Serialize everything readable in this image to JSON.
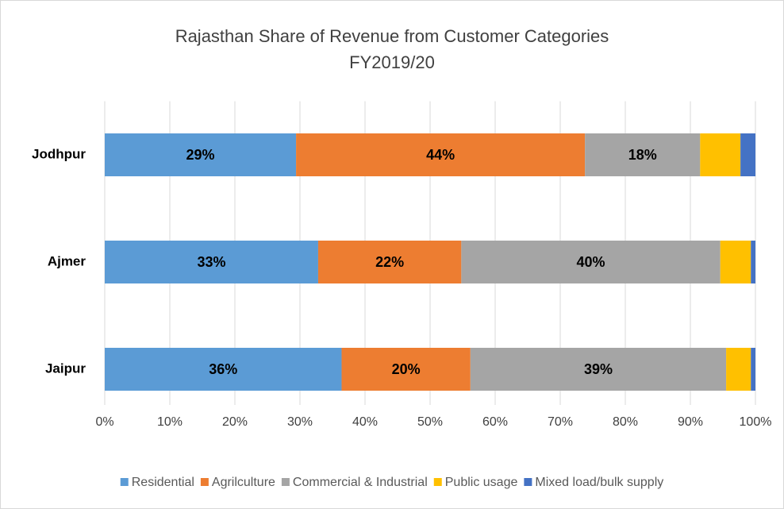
{
  "chart_data": {
    "type": "stacked-bar-horizontal",
    "title": [
      "Rajasthan Share of Revenue from Customer Categories",
      "FY2019/20"
    ],
    "categories": [
      "Jodhpur",
      "Ajmer",
      "Jaipur"
    ],
    "series": [
      {
        "name": "Residential",
        "color": "#5b9bd5",
        "values": [
          29.4,
          32.8,
          36.4
        ],
        "value_labels": [
          "29%",
          "33%",
          "36%"
        ]
      },
      {
        "name": "Agrilculture",
        "color": "#ed7d31",
        "values": [
          44.4,
          22.0,
          19.8
        ],
        "value_labels": [
          "44%",
          "22%",
          "20%"
        ]
      },
      {
        "name": "Commercial & Industrial",
        "color": "#a5a5a5",
        "values": [
          17.7,
          39.8,
          39.3
        ],
        "value_labels": [
          "18%",
          "40%",
          "39%"
        ]
      },
      {
        "name": "Public usage",
        "color": "#ffc000",
        "values": [
          6.2,
          4.7,
          3.8
        ],
        "value_labels": [
          null,
          null,
          null
        ]
      },
      {
        "name": "Mixed load/bulk supply",
        "color": "#4472c4",
        "values": [
          2.3,
          0.7,
          0.7
        ],
        "value_labels": [
          null,
          null,
          null
        ]
      }
    ],
    "xlim": [
      0,
      100
    ],
    "xticks": [
      {
        "value": 0,
        "label": "0%"
      },
      {
        "value": 10,
        "label": "10%"
      },
      {
        "value": 20,
        "label": "20%"
      },
      {
        "value": 30,
        "label": "30%"
      },
      {
        "value": 40,
        "label": "40%"
      },
      {
        "value": 50,
        "label": "50%"
      },
      {
        "value": 60,
        "label": "60%"
      },
      {
        "value": 70,
        "label": "70%"
      },
      {
        "value": 80,
        "label": "80%"
      },
      {
        "value": 90,
        "label": "90%"
      },
      {
        "value": 100,
        "label": "100%"
      }
    ],
    "grid": true,
    "legend": "bottom"
  }
}
